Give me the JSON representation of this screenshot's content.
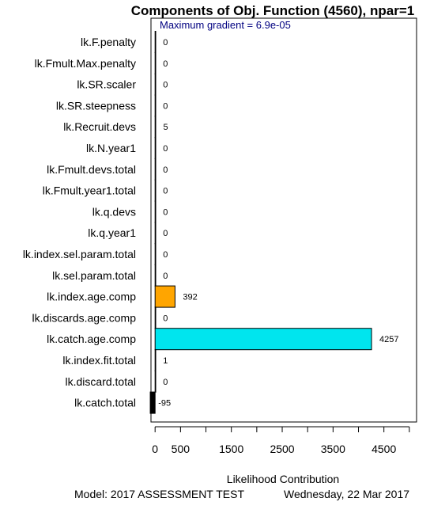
{
  "chart_data": {
    "type": "bar",
    "orientation": "horizontal",
    "title": "Components of Obj. Function (4560), npar=1",
    "annotation": "Maximum gradient = 6.9e-05",
    "xlabel": "Likelihood Contribution",
    "footer_left": "Model: 2017 ASSESSMENT TEST",
    "footer_right": "Wednesday, 22 Mar 2017",
    "xlim": [
      -100,
      5000
    ],
    "x_ticks": [
      0,
      500,
      1000,
      1500,
      2000,
      2500,
      3000,
      3500,
      4000,
      4500,
      5000
    ],
    "x_tick_labels": [
      "0",
      "500",
      "",
      "1500",
      "",
      "2500",
      "",
      "3500",
      "",
      "4500",
      ""
    ],
    "categories": [
      "lk.F.penalty",
      "lk.Fmult.Max.penalty",
      "lk.SR.scaler",
      "lk.SR.steepness",
      "lk.Recruit.devs",
      "lk.N.year1",
      "lk.Fmult.devs.total",
      "lk.Fmult.year1.total",
      "lk.q.devs",
      "lk.q.year1",
      "lk.index.sel.param.total",
      "lk.sel.param.total",
      "lk.index.age.comp",
      "lk.discards.age.comp",
      "lk.catch.age.comp",
      "lk.index.fit.total",
      "lk.discard.total",
      "lk.catch.total"
    ],
    "values": [
      0,
      0,
      0,
      0,
      5,
      0,
      0,
      0,
      0,
      0,
      0,
      0,
      392,
      0,
      4257,
      1,
      0,
      -95
    ],
    "value_labels": [
      "0",
      "0",
      "0",
      "0",
      "5",
      "0",
      "0",
      "0",
      "0",
      "0",
      "0",
      "0",
      "392",
      "0",
      "4257",
      "1",
      "0",
      "-95"
    ],
    "colors": [
      "#ffffff",
      "#ffffff",
      "#ffffff",
      "#ffffff",
      "#ffffff",
      "#ffffff",
      "#ffffff",
      "#ffffff",
      "#ffffff",
      "#ffffff",
      "#ffffff",
      "#ffffff",
      "#ffa500",
      "#ffffff",
      "#00e5ee",
      "#ffffff",
      "#ffffff",
      "#000000"
    ],
    "grid": false
  }
}
